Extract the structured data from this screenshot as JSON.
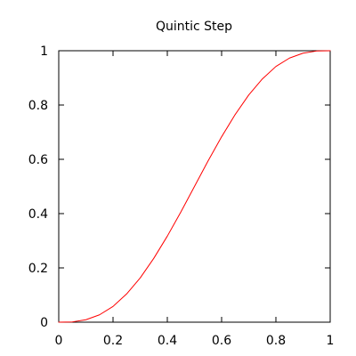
{
  "chart_data": {
    "type": "line",
    "title": "Quintic Step",
    "xlabel": "",
    "ylabel": "",
    "xlim": [
      0,
      1
    ],
    "ylim": [
      0,
      1
    ],
    "grid": false,
    "x_ticks": [
      "0",
      "0.2",
      "0.4",
      "0.6",
      "0.8",
      "1"
    ],
    "y_ticks": [
      "0",
      "0.2",
      "0.4",
      "0.6",
      "0.8",
      "1"
    ],
    "series": [
      {
        "color": "#ff0000",
        "x": [
          0.0,
          0.05,
          0.1,
          0.15,
          0.2,
          0.25,
          0.3,
          0.35,
          0.4,
          0.45,
          0.5,
          0.55,
          0.6,
          0.65,
          0.7,
          0.75,
          0.8,
          0.85,
          0.9,
          0.95,
          1.0
        ],
        "y": [
          0.0,
          0.001,
          0.009,
          0.027,
          0.058,
          0.104,
          0.163,
          0.235,
          0.317,
          0.406,
          0.5,
          0.594,
          0.683,
          0.765,
          0.837,
          0.896,
          0.942,
          0.973,
          0.991,
          0.999,
          1.0
        ]
      }
    ]
  },
  "colors": {
    "axis": "#000000",
    "background": "#ffffff",
    "series": "#ff0000"
  }
}
